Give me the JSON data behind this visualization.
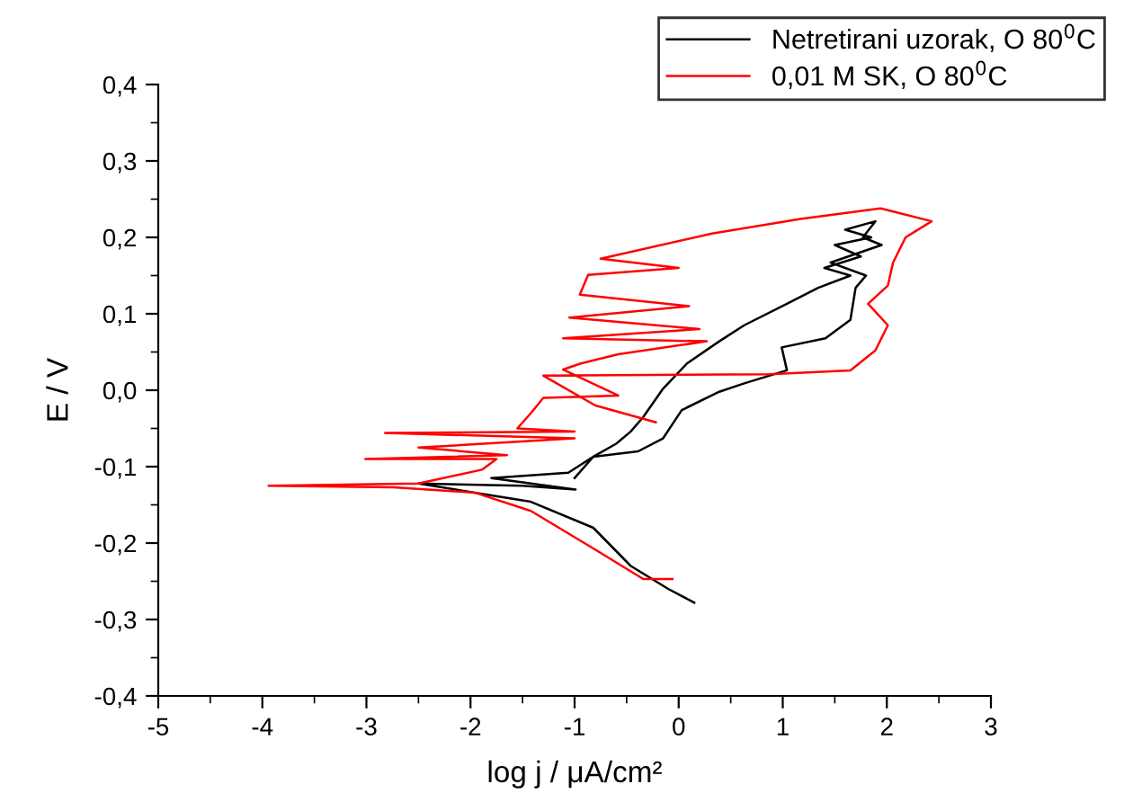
{
  "chart_data": {
    "type": "line",
    "xlabel": "log j / μA/cm²",
    "ylabel": "E / V",
    "legend": "top right",
    "grid": false,
    "marker": "none",
    "line_style": "solid",
    "xlim": [
      -5,
      3
    ],
    "ylim": [
      -0.4,
      0.4
    ],
    "xticks": [
      -5,
      {
        "value": -4.5,
        "label": null
      },
      -4,
      {
        "value": -3.5,
        "label": null
      },
      -3,
      {
        "value": -2.5,
        "label": null
      },
      -2,
      {
        "value": -1.5,
        "label": null
      },
      -1,
      {
        "value": -0.5,
        "label": null
      },
      0,
      {
        "value": 0.5,
        "label": null
      },
      1,
      {
        "value": 1.5,
        "label": null
      },
      2,
      {
        "value": 2.5,
        "label": null
      },
      3
    ],
    "yticks": [
      {
        "value": -0.4,
        "label": "-0,4"
      },
      {
        "value": -0.35,
        "label": null
      },
      {
        "value": -0.3,
        "label": "-0,3"
      },
      {
        "value": -0.25,
        "label": null
      },
      {
        "value": -0.2,
        "label": "-0,2"
      },
      {
        "value": -0.15,
        "label": null
      },
      {
        "value": -0.1,
        "label": "-0,1"
      },
      {
        "value": -0.05,
        "label": null
      },
      {
        "value": 0.0,
        "label": "0,0"
      },
      {
        "value": 0.05,
        "label": null
      },
      {
        "value": 0.1,
        "label": "0,1"
      },
      {
        "value": 0.15,
        "label": null
      },
      {
        "value": 0.2,
        "label": "0,2"
      },
      {
        "value": 0.25,
        "label": null
      },
      {
        "value": 0.3,
        "label": "0,3"
      },
      {
        "value": 0.35,
        "label": null
      },
      {
        "value": 0.4,
        "label": "0,4"
      }
    ],
    "series": [
      {
        "name": "Netretirani uzorak, O 80$^{0}$C",
        "color": "#000000",
        "x": [
          0.15,
          -0.1,
          -0.46,
          -0.82,
          -1.42,
          -1.96,
          -2.5,
          -1.5,
          -0.99,
          -1.8,
          -1.06,
          -0.82,
          -0.6,
          -0.46,
          -0.34,
          -0.15,
          0.08,
          0.39,
          0.63,
          1.04,
          1.34,
          1.65,
          1.4,
          1.75,
          1.5,
          1.85,
          1.6,
          1.89,
          1.77,
          1.95,
          1.46,
          1.8,
          1.7,
          1.65,
          1.41,
          0.99,
          1.04,
          0.63,
          0.39,
          0.03,
          -0.15,
          -0.39,
          -0.82,
          -1.0
        ],
        "values": [
          -0.278,
          -0.26,
          -0.23,
          -0.18,
          -0.146,
          -0.134,
          -0.122,
          -0.125,
          -0.13,
          -0.115,
          -0.108,
          -0.087,
          -0.07,
          -0.054,
          -0.035,
          0.002,
          0.035,
          0.064,
          0.085,
          0.113,
          0.134,
          0.15,
          0.16,
          0.175,
          0.19,
          0.2,
          0.21,
          0.221,
          0.2,
          0.19,
          0.167,
          0.15,
          0.134,
          0.092,
          0.068,
          0.056,
          0.026,
          0.009,
          -0.002,
          -0.026,
          -0.063,
          -0.08,
          -0.087,
          -0.115
        ]
      },
      {
        "name": "0,01 M SK, O 80$^{0}$C",
        "color": "#ff0000",
        "x": [
          -0.06,
          -0.34,
          -0.82,
          -1.42,
          -1.96,
          -2.74,
          -3.94,
          -2.5,
          -1.89,
          -1.75,
          -3.01,
          -1.65,
          -2.5,
          -1.0,
          -2.82,
          -1.0,
          -1.55,
          -1.42,
          -1.3,
          -0.58,
          -1.11,
          -0.94,
          -0.58,
          0.27,
          -1.11,
          0.2,
          -1.05,
          0.1,
          -0.95,
          -0.87,
          0.0,
          -0.75,
          0.32,
          1.17,
          1.94,
          2.43,
          2.18,
          2.06,
          2.01,
          1.82,
          2.01,
          1.89,
          1.65,
          0.87,
          -1.3,
          -0.8,
          -0.22
        ],
        "values": [
          -0.247,
          -0.247,
          -0.207,
          -0.158,
          -0.134,
          -0.127,
          -0.125,
          -0.122,
          -0.104,
          -0.09,
          -0.09,
          -0.085,
          -0.075,
          -0.063,
          -0.056,
          -0.054,
          -0.05,
          -0.03,
          -0.01,
          -0.007,
          0.027,
          0.035,
          0.047,
          0.064,
          0.068,
          0.08,
          0.095,
          0.11,
          0.125,
          0.151,
          0.16,
          0.172,
          0.205,
          0.224,
          0.238,
          0.221,
          0.2,
          0.167,
          0.137,
          0.113,
          0.085,
          0.052,
          0.026,
          0.021,
          0.019,
          -0.02,
          -0.042
        ]
      }
    ]
  }
}
